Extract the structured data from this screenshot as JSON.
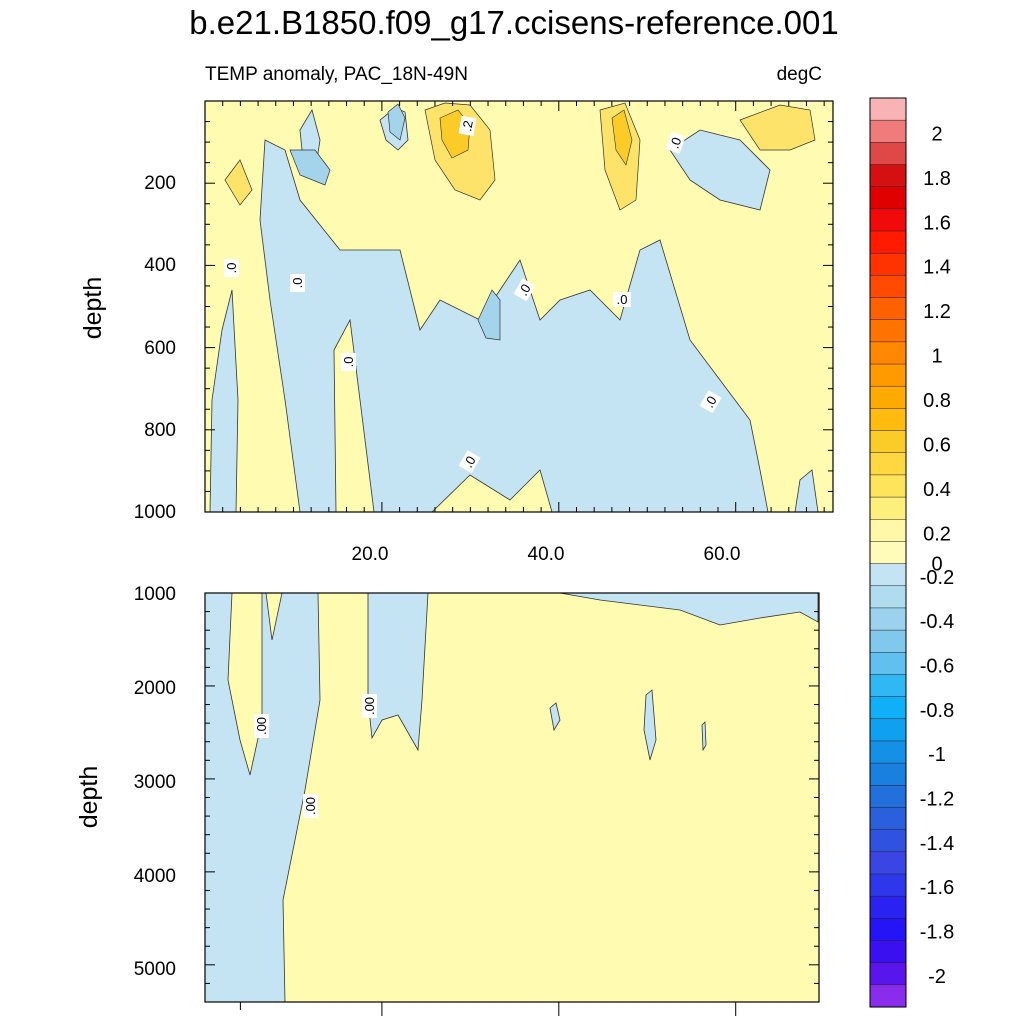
{
  "title": "b.e21.B1850.f09_g17.ccisens-reference.001",
  "colors": {
    "pos_light": "#fffbb0",
    "pos_mid": "#fde36a",
    "neg_light": "#c4e4f4",
    "neg_mid": "#a4d4ec",
    "neg_dark": "#7cc4e8"
  },
  "chart_data": [
    {
      "type": "heatmap",
      "panel": "upper",
      "title": "",
      "subtitle_left": "TEMP anomaly, PAC_18N-49N",
      "subtitle_right": "degC",
      "xlabel": "",
      "ylabel": "depth",
      "xticks": [
        "20.0",
        "40.0",
        "60.0"
      ],
      "xtick_values": [
        20,
        40,
        60
      ],
      "yticks": [
        "200",
        "400",
        "600",
        "800",
        "1000"
      ],
      "ytick_values": [
        200,
        400,
        600,
        800,
        1000
      ],
      "xlim": [
        0,
        71
      ],
      "ylim": [
        0,
        1000
      ],
      "y_reversed": true,
      "contour_labels": [
        ".0",
        ".0",
        ".0",
        ".0",
        ".0",
        ".0",
        ".0",
        ".2",
        ".0",
        ".0"
      ],
      "notes": "negative anomalies (blue) dominate mid-depths 400-1000 between x=10 and x=58; positive anomalies (yellow) near surface, strongest near x=28-32 and x=46-50 (up to ~0.4)"
    },
    {
      "type": "heatmap",
      "panel": "lower",
      "title": "",
      "xlabel": "",
      "ylabel": "depth",
      "yticks": [
        "1000",
        "2000",
        "3000",
        "4000",
        "5000"
      ],
      "ytick_values": [
        1000,
        2000,
        3000,
        4000,
        5000
      ],
      "xlim": [
        0,
        71
      ],
      "ylim": [
        1000,
        5400
      ],
      "y_reversed": true,
      "contour_labels": [
        ".00",
        ".00",
        ".00"
      ],
      "notes": "mostly weak positive (light yellow); weak negative west of x~10 and between x~19-26 above 2600"
    }
  ],
  "colorbar": {
    "labels": [
      "2",
      "1.8",
      "1.6",
      "1.4",
      "1.2",
      "1",
      "0.8",
      "0.6",
      "0.4",
      "0.2",
      "0",
      "-0.2",
      "-0.4",
      "-0.6",
      "-0.8",
      "-1",
      "-1.2",
      "-1.4",
      "-1.6",
      "-1.8",
      "-2"
    ],
    "colors": [
      "#f8b4b4",
      "#f07b7b",
      "#e04848",
      "#d41010",
      "#e00000",
      "#f00a0a",
      "#ff1a00",
      "#ff3300",
      "#ff4a00",
      "#ff6000",
      "#ff7400",
      "#ff8800",
      "#ff9a00",
      "#ffaa00",
      "#ffbb10",
      "#fbcb28",
      "#fdd840",
      "#fde45a",
      "#fdef7c",
      "#fff8a8",
      "#fffbb8",
      "#c4e4f4",
      "#b0dcf0",
      "#9cd2ee",
      "#80c8ec",
      "#62c0f0",
      "#30b8f4",
      "#10b0f8",
      "#10a0f0",
      "#1490e6",
      "#1a80e0",
      "#2270dc",
      "#2a60dc",
      "#3052e0",
      "#3a46e4",
      "#2e38ea",
      "#2a22f0",
      "#2414f6",
      "#3a10f0",
      "#5816ec",
      "#8a2cec"
    ]
  }
}
